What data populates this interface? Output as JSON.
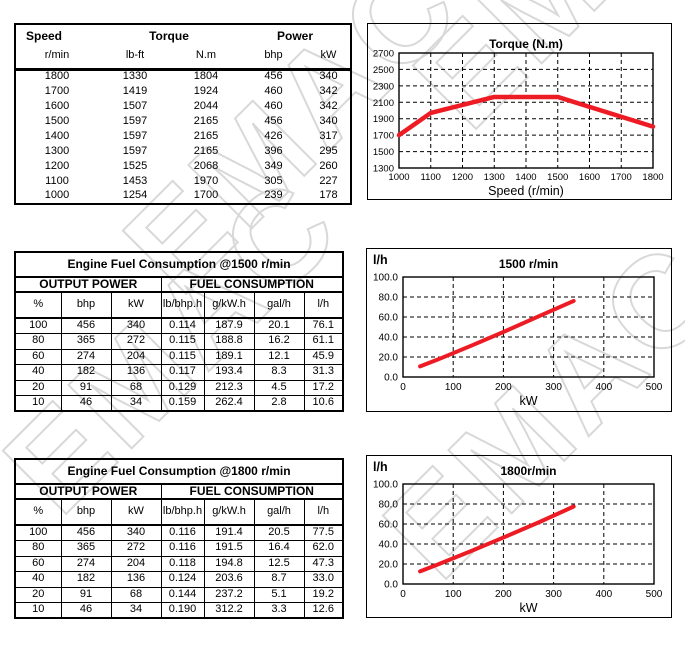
{
  "watermark": {
    "text": "EMAC",
    "color": "#d8d8d8"
  },
  "torque_table": {
    "headers": {
      "speed": "Speed",
      "torque": "Torque",
      "power": "Power"
    },
    "units": [
      "r/min",
      "lb-ft",
      "N.m",
      "bhp",
      "kW"
    ],
    "rows": [
      [
        "1800",
        "1330",
        "1804",
        "456",
        "340"
      ],
      [
        "1700",
        "1419",
        "1924",
        "460",
        "342"
      ],
      [
        "1600",
        "1507",
        "2044",
        "460",
        "342"
      ],
      [
        "1500",
        "1597",
        "2165",
        "456",
        "340"
      ],
      [
        "1400",
        "1597",
        "2165",
        "426",
        "317"
      ],
      [
        "1300",
        "1597",
        "2165",
        "396",
        "295"
      ],
      [
        "1200",
        "1525",
        "2068",
        "349",
        "260"
      ],
      [
        "1100",
        "1453",
        "1970",
        "305",
        "227"
      ],
      [
        "1000",
        "1254",
        "1700",
        "239",
        "178"
      ]
    ]
  },
  "fuel_tables": [
    {
      "title": "Engine Fuel Consumption @1500 r/min",
      "output_power_label": "OUTPUT POWER",
      "fuel_consumption_label": "FUEL CONSUMPTION",
      "units": [
        "%",
        "bhp",
        "kW",
        "lb/bhp.h",
        "g/kW.h",
        "gal/h",
        "l/h"
      ],
      "rows": [
        [
          "100",
          "456",
          "340",
          "0.114",
          "187.9",
          "20.1",
          "76.1"
        ],
        [
          "80",
          "365",
          "272",
          "0.115",
          "188.8",
          "16.2",
          "61.1"
        ],
        [
          "60",
          "274",
          "204",
          "0.115",
          "189.1",
          "12.1",
          "45.9"
        ],
        [
          "40",
          "182",
          "136",
          "0.117",
          "193.4",
          "8.3",
          "31.3"
        ],
        [
          "20",
          "91",
          "68",
          "0.129",
          "212.3",
          "4.5",
          "17.2"
        ],
        [
          "10",
          "46",
          "34",
          "0.159",
          "262.4",
          "2.8",
          "10.6"
        ]
      ]
    },
    {
      "title": "Engine Fuel Consumption @1800 r/min",
      "output_power_label": "OUTPUT POWER",
      "fuel_consumption_label": "FUEL CONSUMPTION",
      "units": [
        "%",
        "bhp",
        "kW",
        "lb/bhp.h",
        "g/kW.h",
        "gal/h",
        "l/h"
      ],
      "rows": [
        [
          "100",
          "456",
          "340",
          "0.116",
          "191.4",
          "20.5",
          "77.5"
        ],
        [
          "80",
          "365",
          "272",
          "0.116",
          "191.5",
          "16.4",
          "62.0"
        ],
        [
          "60",
          "274",
          "204",
          "0.118",
          "194.8",
          "12.5",
          "47.3"
        ],
        [
          "40",
          "182",
          "136",
          "0.124",
          "203.6",
          "8.7",
          "33.0"
        ],
        [
          "20",
          "91",
          "68",
          "0.144",
          "237.2",
          "5.1",
          "19.2"
        ],
        [
          "10",
          "46",
          "34",
          "0.190",
          "312.2",
          "3.3",
          "12.6"
        ]
      ]
    }
  ],
  "chart_data": [
    {
      "type": "line",
      "title": "Torque (N.m)",
      "xlabel": "Speed (r/min)",
      "ylabel": "",
      "x": [
        1000,
        1100,
        1200,
        1300,
        1400,
        1500,
        1600,
        1700,
        1800
      ],
      "y": [
        1700,
        1970,
        2068,
        2165,
        2165,
        2165,
        2044,
        1924,
        1804
      ],
      "xlim": [
        1000,
        1800
      ],
      "ylim": [
        1300,
        2700
      ],
      "xticks": [
        1000,
        1100,
        1200,
        1300,
        1400,
        1500,
        1600,
        1700,
        1800
      ],
      "yticks": [
        1300,
        1500,
        1700,
        1900,
        2100,
        2300,
        2500,
        2700
      ],
      "xtick_labels": [
        "1000",
        "1100",
        "1200",
        "1300",
        "1400",
        "1500",
        "1600",
        "1700",
        "1800"
      ],
      "ytick_labels": [
        "1300",
        "1500",
        "1700",
        "1900",
        "2100",
        "2300",
        "2500",
        "2700"
      ],
      "grid": "dashed",
      "legend": "none",
      "line_color": "#ed1c24"
    },
    {
      "type": "line",
      "title": "1500 r/min",
      "xlabel": "kW",
      "ylabel": "l/h",
      "x": [
        34,
        68,
        136,
        204,
        272,
        340
      ],
      "y": [
        10.6,
        17.2,
        31.3,
        45.9,
        61.1,
        76.1
      ],
      "xlim": [
        0,
        500
      ],
      "ylim": [
        0,
        100
      ],
      "xticks": [
        0,
        100,
        200,
        300,
        400,
        500
      ],
      "yticks": [
        0,
        20,
        40,
        60,
        80,
        100
      ],
      "xtick_labels": [
        "0",
        "100",
        "200",
        "300",
        "400",
        "500"
      ],
      "ytick_labels": [
        "0.0",
        "20.0",
        "40.0",
        "60.0",
        "80.0",
        "100.0"
      ],
      "grid": "dashed",
      "legend": "none",
      "line_color": "#ed1c24"
    },
    {
      "type": "line",
      "title": "1800r/min",
      "xlabel": "kW",
      "ylabel": "l/h",
      "x": [
        34,
        68,
        136,
        204,
        272,
        340
      ],
      "y": [
        12.6,
        19.2,
        33.0,
        47.3,
        62.0,
        77.5
      ],
      "xlim": [
        0,
        500
      ],
      "ylim": [
        0,
        100
      ],
      "xticks": [
        0,
        100,
        200,
        300,
        400,
        500
      ],
      "yticks": [
        0,
        20,
        40,
        60,
        80,
        100
      ],
      "xtick_labels": [
        "0",
        "100",
        "200",
        "300",
        "400",
        "500"
      ],
      "ytick_labels": [
        "0.0",
        "20.0",
        "40.0",
        "60.0",
        "80.0",
        "100.0"
      ],
      "grid": "dashed",
      "legend": "none",
      "line_color": "#ed1c24"
    }
  ]
}
